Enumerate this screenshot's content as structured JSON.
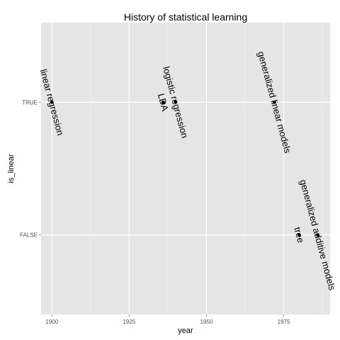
{
  "chart_data": {
    "type": "scatter",
    "title": "History of statistical learning",
    "xlabel": "year",
    "ylabel": "is_linear",
    "xlim": [
      1896.5,
      1990
    ],
    "x_ticks": [
      1900,
      1925,
      1950,
      1975
    ],
    "x_tick_labels": [
      "1900",
      "1925",
      "1950",
      "1975"
    ],
    "y_categories": [
      "FALSE",
      "TRUE"
    ],
    "grid": true,
    "background": "#e5e5e5",
    "grid_color": "#ffffff",
    "point_color": "#000000",
    "label_angle": -75,
    "points": [
      {
        "x": 1900,
        "y": "TRUE",
        "label": "linear regression"
      },
      {
        "x": 1936,
        "y": "TRUE",
        "label": "LDA"
      },
      {
        "x": 1940,
        "y": "TRUE",
        "label": "logistic regression"
      },
      {
        "x": 1972,
        "y": "TRUE",
        "label": "generalized linear models"
      },
      {
        "x": 1980,
        "y": "FALSE",
        "label": "tree"
      },
      {
        "x": 1986,
        "y": "FALSE",
        "label": "generalized additive models"
      }
    ]
  }
}
